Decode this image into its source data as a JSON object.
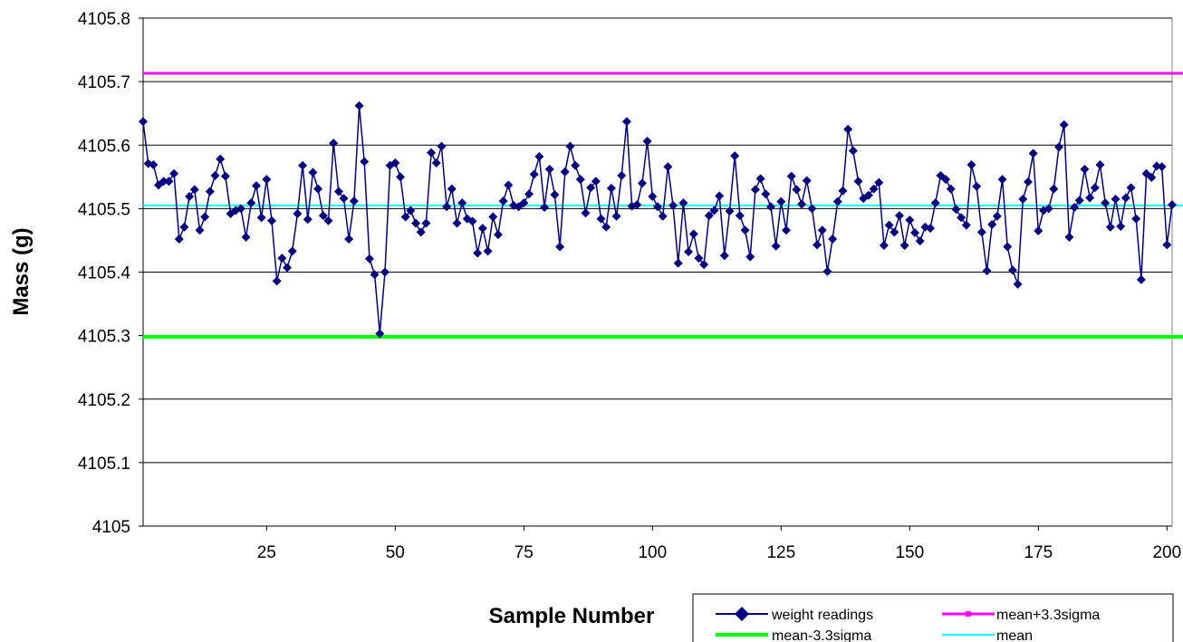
{
  "chart_data": {
    "type": "line",
    "title": "",
    "xlabel": "Sample Number",
    "ylabel": "Mass (g)",
    "xlim": [
      1,
      201
    ],
    "ylim": [
      4105,
      4105.8
    ],
    "x_ticks": [
      25,
      50,
      75,
      100,
      125,
      150,
      175,
      200
    ],
    "x_tick_labels": [
      "25",
      "50",
      "75",
      "100",
      "125",
      "150",
      "175",
      "200"
    ],
    "y_ticks": [
      4105,
      4105.1,
      4105.2,
      4105.3,
      4105.4,
      4105.5,
      4105.6,
      4105.7,
      4105.8
    ],
    "y_tick_labels": [
      "4105",
      "4105.1",
      "4105.2",
      "4105.3",
      "4105.4",
      "4105.5",
      "4105.6",
      "4105.7",
      "4105.8"
    ],
    "grid": "horizontal",
    "legend_position": "bottom-right",
    "series": [
      {
        "name": "weight readings",
        "color": "#000080",
        "marker": "diamond",
        "x_start": 1,
        "values": [
          4105.637,
          4105.571,
          4105.569,
          4105.537,
          4105.543,
          4105.543,
          4105.555,
          4105.452,
          4105.471,
          4105.519,
          4105.53,
          4105.466,
          4105.487,
          4105.527,
          4105.552,
          4105.578,
          4105.551,
          4105.492,
          4105.497,
          4105.5,
          4105.455,
          4105.509,
          4105.536,
          4105.486,
          4105.546,
          4105.481,
          4105.386,
          4105.422,
          4105.407,
          4105.433,
          4105.492,
          4105.568,
          4105.483,
          4105.557,
          4105.531,
          4105.489,
          4105.481,
          4105.603,
          4105.527,
          4105.516,
          4105.452,
          4105.512,
          4105.662,
          4105.574,
          4105.421,
          4105.396,
          4105.303,
          4105.4,
          4105.568,
          4105.572,
          4105.55,
          4105.487,
          4105.497,
          4105.477,
          4105.463,
          4105.477,
          4105.588,
          4105.572,
          4105.598,
          4105.503,
          4105.531,
          4105.477,
          4105.509,
          4105.484,
          4105.48,
          4105.43,
          4105.469,
          4105.433,
          4105.487,
          4105.459,
          4105.512,
          4105.537,
          4105.505,
          4105.503,
          4105.509,
          4105.523,
          4105.554,
          4105.582,
          4105.502,
          4105.562,
          4105.522,
          4105.44,
          4105.558,
          4105.598,
          4105.568,
          4105.546,
          4105.493,
          4105.533,
          4105.543,
          4105.484,
          4105.471,
          4105.532,
          4105.488,
          4105.552,
          4105.637,
          4105.504,
          4105.506,
          4105.54,
          4105.606,
          4105.519,
          4105.503,
          4105.488,
          4105.566,
          4105.505,
          4105.414,
          4105.509,
          4105.432,
          4105.46,
          4105.422,
          4105.412,
          4105.489,
          4105.497,
          4105.52,
          4105.426,
          4105.496,
          4105.583,
          4105.489,
          4105.466,
          4105.424,
          4105.53,
          4105.547,
          4105.523,
          4105.503,
          4105.441,
          4105.511,
          4105.466,
          4105.551,
          4105.53,
          4105.507,
          4105.544,
          4105.5,
          4105.443,
          4105.466,
          4105.401,
          4105.452,
          4105.511,
          4105.528,
          4105.625,
          4105.591,
          4105.543,
          4105.516,
          4105.521,
          4105.531,
          4105.541,
          4105.442,
          4105.474,
          4105.463,
          4105.489,
          4105.442,
          4105.482,
          4105.462,
          4105.449,
          4105.471,
          4105.469,
          4105.509,
          4105.552,
          4105.546,
          4105.531,
          4105.499,
          4105.486,
          4105.474,
          4105.569,
          4105.535,
          4105.463,
          4105.402,
          4105.475,
          4105.488,
          4105.546,
          4105.44,
          4105.403,
          4105.381,
          4105.515,
          4105.542,
          4105.587,
          4105.465,
          4105.497,
          4105.5,
          4105.531,
          4105.597,
          4105.632,
          4105.455,
          4105.502,
          4105.513,
          4105.562,
          4105.517,
          4105.533,
          4105.569,
          4105.509,
          4105.471,
          4105.515,
          4105.472,
          4105.517,
          4105.533,
          4105.484,
          4105.388,
          4105.555,
          4105.549,
          4105.567,
          4105.566,
          4105.443,
          4105.506
        ]
      },
      {
        "name": "mean+3.3sigma",
        "color": "#FF00FF",
        "value": 4105.713
      },
      {
        "name": "mean-3.3sigma",
        "color": "#00FF00",
        "value": 4105.298
      },
      {
        "name": "mean",
        "color": "#00FFFF",
        "value": 4105.505
      }
    ]
  }
}
